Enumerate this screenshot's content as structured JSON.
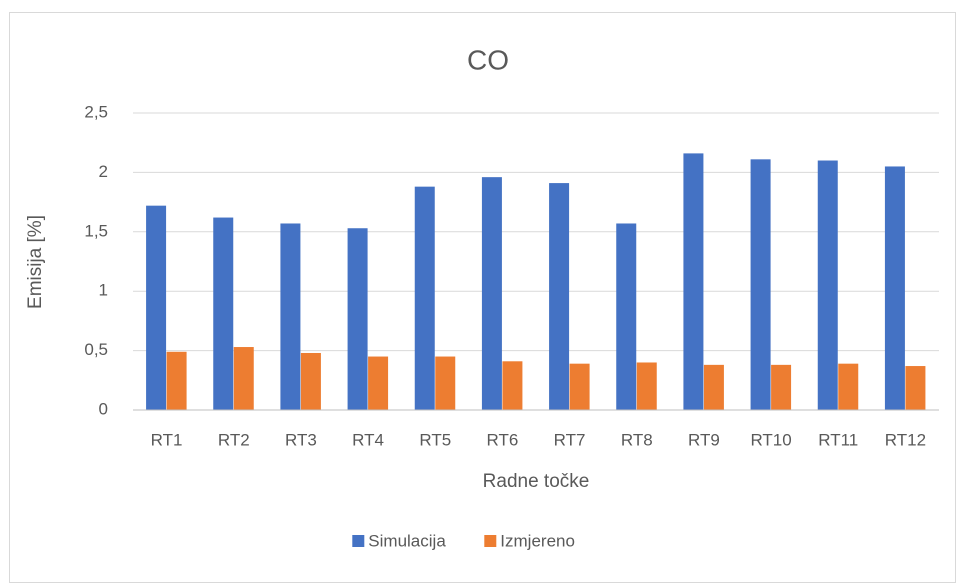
{
  "chart_data": {
    "type": "bar",
    "title": "CO",
    "x_label": "Radne točke",
    "y_label": "Emisija [%]",
    "categories": [
      "RT1",
      "RT2",
      "RT3",
      "RT4",
      "RT5",
      "RT6",
      "RT7",
      "RT8",
      "RT9",
      "RT10",
      "RT11",
      "RT12"
    ],
    "series": [
      {
        "name": "Simulacija",
        "color": "#4472c4",
        "values": [
          1.72,
          1.62,
          1.57,
          1.53,
          1.88,
          1.96,
          1.91,
          1.57,
          2.16,
          2.11,
          2.1,
          2.05
        ]
      },
      {
        "name": "Izmjereno",
        "color": "#ed7d31",
        "values": [
          0.49,
          0.53,
          0.48,
          0.45,
          0.45,
          0.41,
          0.39,
          0.4,
          0.38,
          0.38,
          0.39,
          0.37
        ]
      }
    ],
    "ylim": [
      0,
      2.5
    ],
    "yticks": [
      0,
      {
        "value": 0.5,
        "label": "0,5"
      },
      1,
      {
        "value": 1.5,
        "label": "1,5"
      },
      2,
      {
        "value": 2.5,
        "label": "2,5"
      }
    ],
    "grid": true,
    "legend": "bottom"
  }
}
